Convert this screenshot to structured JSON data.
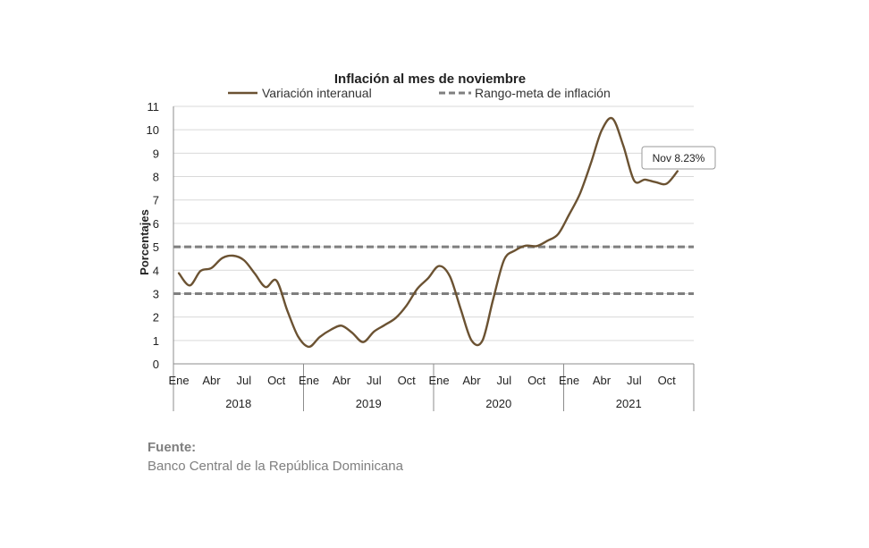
{
  "chart_data": {
    "type": "line",
    "title": "Inflación al mes de noviembre",
    "ylabel": "Porcentajes",
    "xlabel": "",
    "ylim": [
      0,
      11
    ],
    "yticks": [
      "0",
      "1",
      "2",
      "3",
      "4",
      "5",
      "6",
      "7",
      "8",
      "9",
      "10",
      "11"
    ],
    "grid": true,
    "legend_position": "top",
    "month_tick_labels": [
      "Ene",
      "Abr",
      "Jul",
      "Oct",
      "Ene",
      "Abr",
      "Jul",
      "Oct",
      "Ene",
      "Abr",
      "Jul",
      "Oct",
      "Ene",
      "Abr",
      "Jul",
      "Oct"
    ],
    "years": [
      "2018",
      "2019",
      "2020",
      "2021"
    ],
    "series": [
      {
        "name": "Variación interanual",
        "color": "#6b5232",
        "style": "solid",
        "x": [
          "2018-01",
          "2018-02",
          "2018-03",
          "2018-04",
          "2018-05",
          "2018-06",
          "2018-07",
          "2018-08",
          "2018-09",
          "2018-10",
          "2018-11",
          "2018-12",
          "2019-01",
          "2019-02",
          "2019-03",
          "2019-04",
          "2019-05",
          "2019-06",
          "2019-07",
          "2019-08",
          "2019-09",
          "2019-10",
          "2019-11",
          "2019-12",
          "2020-01",
          "2020-02",
          "2020-03",
          "2020-04",
          "2020-05",
          "2020-06",
          "2020-07",
          "2020-08",
          "2020-09",
          "2020-10",
          "2020-11",
          "2020-12",
          "2021-01",
          "2021-02",
          "2021-03",
          "2021-04",
          "2021-05",
          "2021-06",
          "2021-07",
          "2021-08",
          "2021-09",
          "2021-10",
          "2021-11"
        ],
        "values": [
          3.87,
          3.35,
          3.97,
          4.09,
          4.52,
          4.62,
          4.43,
          3.86,
          3.28,
          3.56,
          2.28,
          1.17,
          0.73,
          1.15,
          1.45,
          1.63,
          1.32,
          0.93,
          1.38,
          1.66,
          1.96,
          2.49,
          3.21,
          3.66,
          4.18,
          3.74,
          2.34,
          1.0,
          0.99,
          2.77,
          4.44,
          4.84,
          5.05,
          5.03,
          5.26,
          5.55,
          6.38,
          7.27,
          8.56,
          9.97,
          10.48,
          9.32,
          7.83,
          7.87,
          7.76,
          7.7,
          8.23
        ]
      },
      {
        "name": "Rango-meta de inflación",
        "color": "#7f7f7f",
        "style": "dashed",
        "bounds": [
          3,
          5
        ]
      }
    ],
    "annotation": {
      "text": "Nov 8.23%",
      "x": "2021-11",
      "y": 8.23
    }
  },
  "source": {
    "label": "Fuente:",
    "text": "Banco Central de la República Dominicana"
  }
}
